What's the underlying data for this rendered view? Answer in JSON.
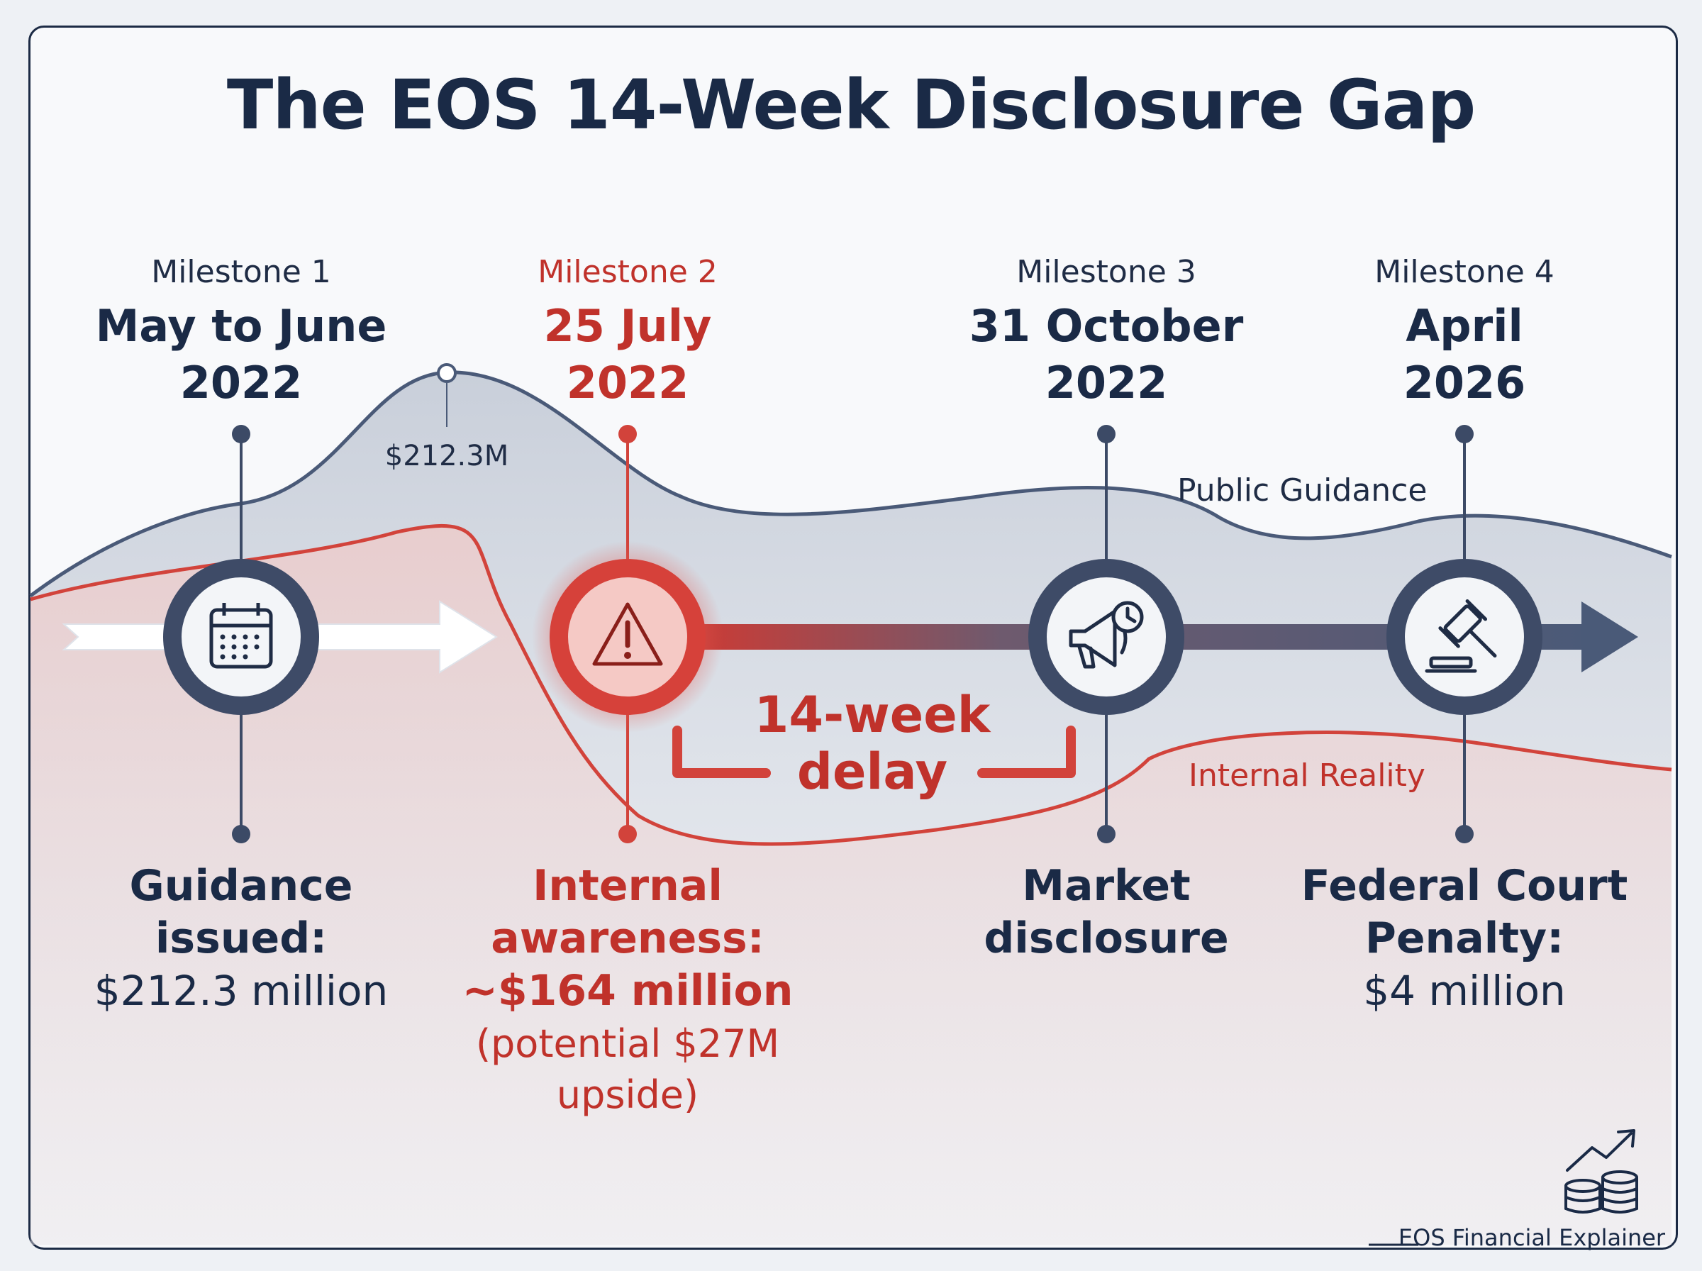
{
  "title": "The EOS 14-Week Disclosure Gap",
  "milestones": [
    {
      "label": "Milestone 1",
      "date_line1": "May to June",
      "date_line2": "2022",
      "desc_line1": "Guidance",
      "desc_line2": "issued:",
      "value": "$212.3 million",
      "icon": "calendar-icon"
    },
    {
      "label": "Milestone 2",
      "date_line1": "25 July",
      "date_line2": "2022",
      "desc_line1": "Internal",
      "desc_line2": "awareness:",
      "value": "~$164 million",
      "note_line1": "(potential $27M",
      "note_line2": "upside)",
      "icon": "warning-icon"
    },
    {
      "label": "Milestone 3",
      "date_line1": "31 October",
      "date_line2": "2022",
      "desc_line1": "Market",
      "desc_line2": "disclosure",
      "icon": "megaphone-clock-icon"
    },
    {
      "label": "Milestone 4",
      "date_line1": "April",
      "date_line2": "2026",
      "desc_line1": "Federal Court",
      "desc_line2": "Penalty:",
      "value": "$4 million",
      "icon": "gavel-icon"
    }
  ],
  "peak_value": "$212.3M",
  "public_guidance_label": "Public Guidance",
  "internal_reality_label": "Internal Reality",
  "delay_line1": "14-week",
  "delay_line2": "delay",
  "brand": "EOS Financial Explainer",
  "colors": {
    "navy": "#1a2a46",
    "slate": "#4a5a78",
    "red": "#d2433b",
    "dark_red": "#c0322b"
  }
}
